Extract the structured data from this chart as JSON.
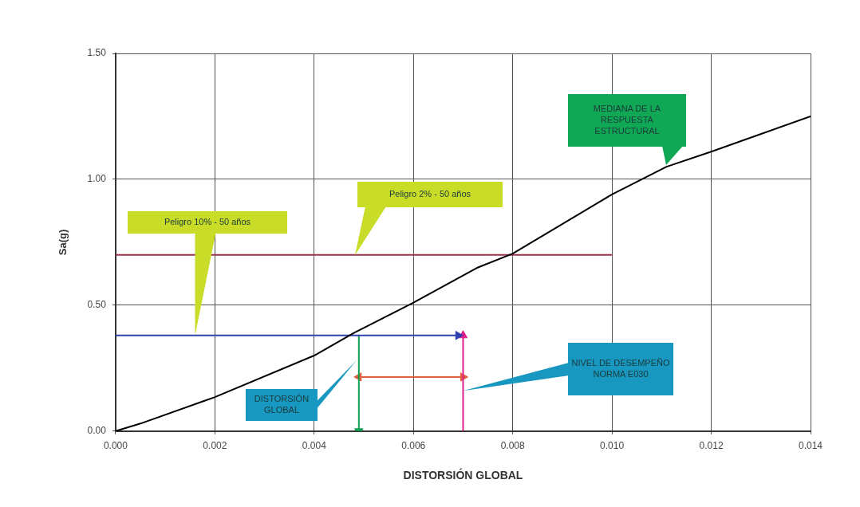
{
  "chart_data": {
    "type": "line",
    "xlabel": "DISTORSIÓN GLOBAL",
    "ylabel": "Sa(g)",
    "xlim": [
      0,
      0.014
    ],
    "xticks": [
      {
        "value": 0,
        "label": "0.000"
      },
      {
        "value": 0.002,
        "label": "0.002"
      },
      {
        "value": 0.004,
        "label": "0.004"
      },
      {
        "value": 0.006,
        "label": "0.006"
      },
      {
        "value": 0.008,
        "label": "0.008"
      },
      {
        "value": 0.01,
        "label": "0.010"
      },
      {
        "value": 0.012,
        "label": "0.012"
      },
      {
        "value": 0.014,
        "label": "0.014"
      }
    ],
    "ylim": [
      0,
      1.5
    ],
    "yticks": [
      {
        "value": 0,
        "label": "0.00"
      },
      {
        "value": 0.5,
        "label": "0.50"
      },
      {
        "value": 1,
        "label": "1.00"
      },
      {
        "value": 1.5,
        "label": "1.50"
      }
    ],
    "grid": true,
    "legend": false,
    "marker": "none",
    "line_style": "solid",
    "series": [
      {
        "color": "#000000",
        "x": [
          0,
          0.0005,
          0.002,
          0.004,
          0.0048,
          0.006,
          0.0073,
          0.008,
          0.01,
          0.0111,
          0.012,
          0.014
        ],
        "values": [
          0,
          0.03,
          0.135,
          0.3,
          0.39,
          0.51,
          0.65,
          0.705,
          0.94,
          1.05,
          1.11,
          1.25
        ]
      },
      {
        "color": "#a0304a",
        "x": [
          0,
          0.01
        ],
        "values": [
          0.7,
          0.7
        ]
      },
      {
        "color": "#3040b0",
        "marker": "triangle",
        "x": [
          0,
          0.0069
        ],
        "values": [
          0.38,
          0.38
        ]
      },
      {
        "color": "#10a050",
        "marker": "triangle",
        "x": [
          0.0049,
          0.0049
        ],
        "values": [
          0.38,
          0
        ]
      },
      {
        "color": "#e0208a",
        "marker": "triangle",
        "x": [
          0.007,
          0.007
        ],
        "values": [
          0,
          0.38
        ]
      },
      {
        "color": "#e06040",
        "marker": "triangle",
        "x": [
          0.0049,
          0.007
        ],
        "values": [
          0.215,
          0.215
        ]
      }
    ],
    "annotations": [
      {
        "text": "Peligro 10% - 50 años",
        "x": 0.0016,
        "y": 0.38
      },
      "Peligro 2% - 50 años",
      "MEDIANA DE LA RESPUESTA ESTRUCTURAL",
      "DISTORSIÓN GLOBAL",
      {
        "text": "NIVEL DE DESEMPEÑO NORMA E030",
        "x": 0.007,
        "y": 0.16
      }
    ]
  }
}
